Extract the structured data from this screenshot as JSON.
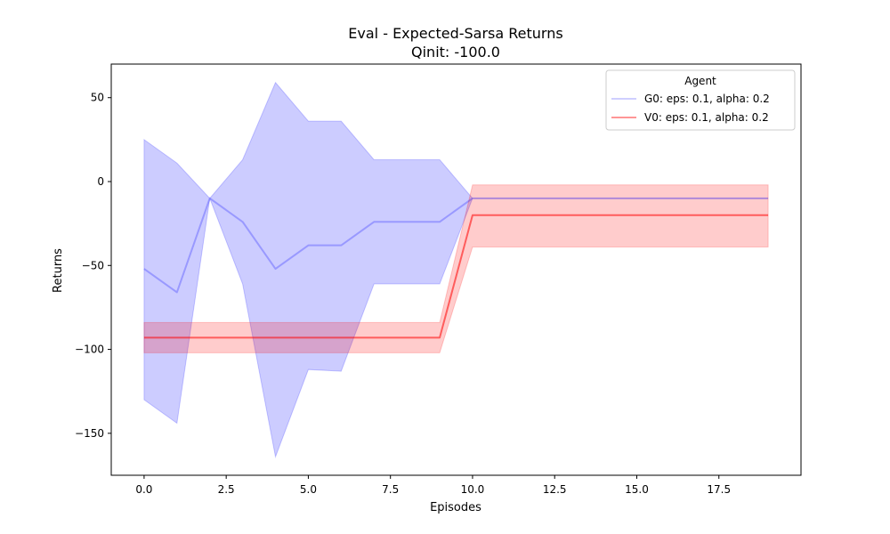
{
  "chart_data": {
    "type": "line",
    "title": "Eval - Expected-Sarsa Returns",
    "subtitle": "Qinit: -100.0",
    "xlabel": "Episodes",
    "ylabel": "Returns",
    "xlim": [
      -1,
      20
    ],
    "ylim": [
      -175,
      70
    ],
    "xticks": [
      0,
      2.5,
      5,
      7.5,
      10,
      12.5,
      15,
      17.5
    ],
    "xtick_labels": [
      "0.0",
      "2.5",
      "5.0",
      "7.5",
      "10.0",
      "12.5",
      "15.0",
      "17.5"
    ],
    "yticks": [
      -150,
      -100,
      -50,
      0,
      50
    ],
    "ytick_labels": [
      "−150",
      "−100",
      "−50",
      "0",
      "50"
    ],
    "grid": false,
    "legend": {
      "title": "Agent",
      "position": "top-right"
    },
    "x": [
      0,
      1,
      2,
      3,
      4,
      5,
      6,
      7,
      8,
      9,
      10,
      11,
      12,
      13,
      14,
      15,
      16,
      17,
      18,
      19
    ],
    "series": [
      {
        "name": "G0: eps: 0.1, alpha: 0.2",
        "color": "#0000ff",
        "values": [
          -52,
          -66,
          -10,
          -24,
          -52,
          -38,
          -38,
          -24,
          -24,
          -24,
          -10,
          -10,
          -10,
          -10,
          -10,
          -10,
          -10,
          -10,
          -10,
          -10
        ],
        "upper": [
          25,
          11,
          -10,
          13,
          59,
          36,
          36,
          13,
          13,
          13,
          -10,
          -10,
          -10,
          -10,
          -10,
          -10,
          -10,
          -10,
          -10,
          -10
        ],
        "lower": [
          -130,
          -144,
          -10,
          -61,
          -164,
          -112,
          -113,
          -61,
          -61,
          -61,
          -10,
          -10,
          -10,
          -10,
          -10,
          -10,
          -10,
          -10,
          -10,
          -10
        ]
      },
      {
        "name": "V0: eps: 0.1, alpha: 0.2",
        "color": "#ff0000",
        "values": [
          -93,
          -93,
          -93,
          -93,
          -93,
          -93,
          -93,
          -93,
          -93,
          -93,
          -20,
          -20,
          -20,
          -20,
          -20,
          -20,
          -20,
          -20,
          -20,
          -20
        ],
        "upper": [
          -84,
          -84,
          -84,
          -84,
          -84,
          -84,
          -84,
          -84,
          -84,
          -84,
          -2,
          -2,
          -2,
          -2,
          -2,
          -2,
          -2,
          -2,
          -2,
          -2
        ],
        "lower": [
          -102,
          -102,
          -102,
          -102,
          -102,
          -102,
          -102,
          -102,
          -102,
          -102,
          -39,
          -39,
          -39,
          -39,
          -39,
          -39,
          -39,
          -39,
          -39,
          -39
        ]
      }
    ]
  }
}
